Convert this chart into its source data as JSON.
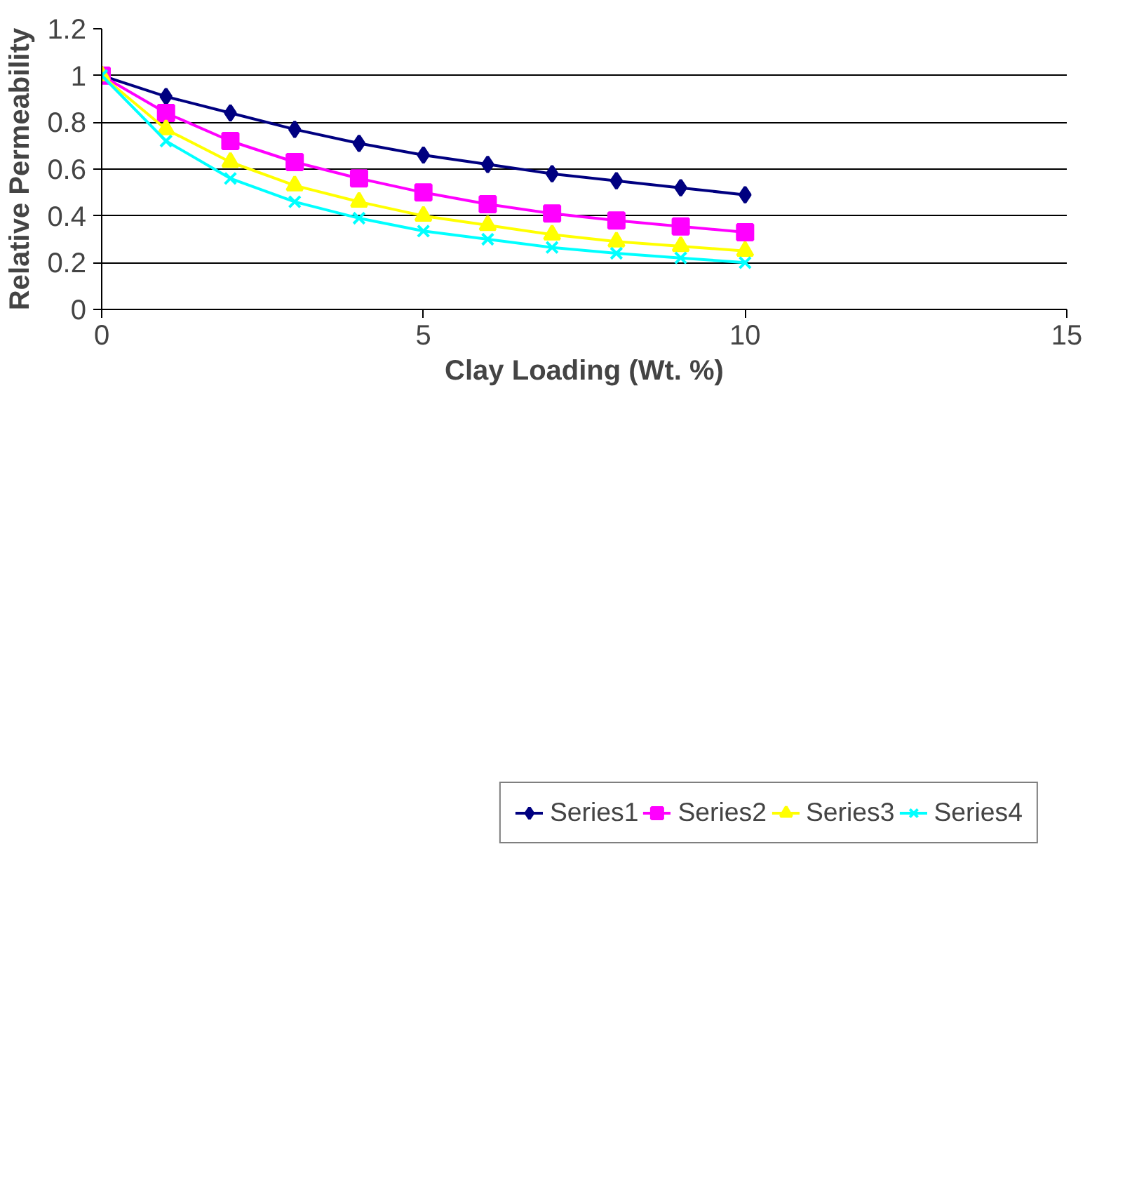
{
  "chart_data": {
    "type": "line",
    "xlabel": "Clay Loading (Wt. %)",
    "ylabel": "Relative Permeability",
    "x": [
      0,
      1,
      2,
      3,
      4,
      5,
      6,
      7,
      8,
      9,
      10
    ],
    "xlim": [
      0,
      15
    ],
    "xticks": [
      0,
      5,
      10,
      15
    ],
    "ylim": [
      0,
      1.2
    ],
    "yticks": [
      0,
      0.2,
      0.4,
      0.6,
      0.8,
      1,
      1.2
    ],
    "grid": "y",
    "legend": "bottom",
    "line_style": "solid",
    "series": [
      {
        "name": "Series1",
        "color": "#000080",
        "marker": "diamond",
        "values": [
          1,
          0.91,
          0.84,
          0.77,
          0.71,
          0.66,
          0.62,
          0.58,
          0.55,
          0.52,
          0.49
        ]
      },
      {
        "name": "Series2",
        "color": "#ff00ff",
        "marker": "square",
        "values": [
          1,
          0.84,
          0.72,
          0.63,
          0.56,
          0.5,
          0.45,
          0.41,
          0.38,
          0.355,
          0.33
        ]
      },
      {
        "name": "Series3",
        "color": "#ffff00",
        "marker": "triangle",
        "values": [
          1,
          0.77,
          0.63,
          0.53,
          0.46,
          0.4,
          0.36,
          0.32,
          0.29,
          0.27,
          0.25
        ]
      },
      {
        "name": "Series4",
        "color": "#00ffff",
        "marker": "cross",
        "values": [
          1,
          0.72,
          0.56,
          0.46,
          0.39,
          0.335,
          0.3,
          0.265,
          0.24,
          0.22,
          0.2
        ]
      }
    ]
  }
}
